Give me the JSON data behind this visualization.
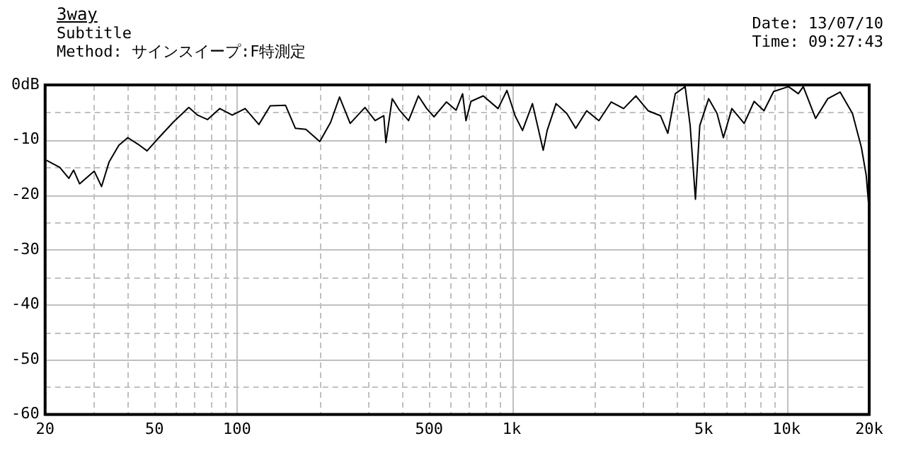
{
  "chart_data": {
    "type": "line",
    "title": "3way",
    "subtitle": "Subtitle",
    "annotations": [
      "Method:  サインスイープ:F特測定",
      "Date: 13/07/10",
      "Time: 09:27:43"
    ],
    "log": "x",
    "grid": true,
    "legend": false,
    "marker": "none",
    "line_style": "solid",
    "xlim": [
      20,
      20000
    ],
    "xticks": [
      20,
      {
        "value": 30,
        "label": null
      },
      {
        "value": 40,
        "label": null
      },
      50,
      {
        "value": 60,
        "label": null
      },
      {
        "value": 70,
        "label": null
      },
      {
        "value": 80,
        "label": null
      },
      {
        "value": 90,
        "label": null
      },
      100,
      {
        "value": 200,
        "label": null
      },
      {
        "value": 300,
        "label": null
      },
      {
        "value": 400,
        "label": null
      },
      500,
      {
        "value": 600,
        "label": null
      },
      {
        "value": 700,
        "label": null
      },
      {
        "value": 800,
        "label": null
      },
      {
        "value": 900,
        "label": null
      },
      {
        "value": 1000,
        "label": "1k"
      },
      {
        "value": 2000,
        "label": null
      },
      {
        "value": 3000,
        "label": null
      },
      {
        "value": 4000,
        "label": null
      },
      {
        "value": 5000,
        "label": "5k"
      },
      {
        "value": 6000,
        "label": null
      },
      {
        "value": 7000,
        "label": null
      },
      {
        "value": 8000,
        "label": null
      },
      {
        "value": 9000,
        "label": null
      },
      {
        "value": 10000,
        "label": "10k"
      },
      {
        "value": 20000,
        "label": "20k"
      }
    ],
    "ylim": [
      -60,
      0
    ],
    "yticks": [
      -60,
      {
        "value": -55,
        "label": null
      },
      -50,
      {
        "value": -45,
        "label": null
      },
      -40,
      {
        "value": -35,
        "label": null
      },
      -30,
      {
        "value": -25,
        "label": null
      },
      -20,
      {
        "value": -15,
        "label": null
      },
      -10,
      {
        "value": -5,
        "label": null
      },
      {
        "value": 0,
        "label": "0dB"
      }
    ],
    "series": [
      {
        "color": "#000000",
        "x": [
          20.2,
          22.6,
          24.4,
          25.4,
          26.7,
          30.2,
          32.1,
          34.2,
          37.1,
          40,
          43.6,
          47,
          51.9,
          58.5,
          66.7,
          71.8,
          78,
          86.5,
          96,
          107,
          120,
          132,
          150,
          163,
          178,
          200,
          219,
          236,
          258,
          292,
          318,
          342,
          348,
          367,
          390,
          421,
          457,
          490,
          521,
          578,
          627,
          662,
          681,
          710,
          787,
          891,
          960,
          1028,
          1094,
          1189,
          1301,
          1345,
          1449,
          1585,
          1709,
          1873,
          2075,
          2301,
          2553,
          2830,
          3134,
          3477,
          3698,
          3936,
          4276,
          4459,
          4661,
          4834,
          5208,
          5587,
          5892,
          6325,
          7015,
          7623,
          8280,
          8979,
          10165,
          11040,
          11510,
          12765,
          14140,
          15670,
          17380,
          18740,
          19500,
          19900,
          20000
        ],
        "values": [
          -13.7,
          -15,
          -17,
          -15.5,
          -18,
          -15.7,
          -18.5,
          -14,
          -11,
          -9.6,
          -10.8,
          -12,
          -9.6,
          -6.8,
          -4.1,
          -5.5,
          -6.3,
          -4.3,
          -5.5,
          -4.3,
          -7.2,
          -3.8,
          -3.7,
          -7.9,
          -8.1,
          -10.3,
          -6.8,
          -2.2,
          -7,
          -4.1,
          -6.5,
          -5.6,
          -10.5,
          -2.5,
          -4.6,
          -6.5,
          -2,
          -4.3,
          -5.8,
          -3.1,
          -4.6,
          -1.6,
          -6.5,
          -3,
          -2,
          -4.3,
          -1,
          -5.6,
          -8.3,
          -3.4,
          -11.9,
          -8.3,
          -3.4,
          -5.2,
          -7.9,
          -4.7,
          -6.5,
          -3.1,
          -4.3,
          -2,
          -4.7,
          -5.6,
          -8.8,
          -1.6,
          -0.3,
          -7.4,
          -20.8,
          -7.4,
          -2.5,
          -5.2,
          -9.6,
          -4.3,
          -7,
          -3,
          -4.7,
          -1.2,
          -0.3,
          -1.6,
          -0.3,
          -6.1,
          -2.5,
          -1.3,
          -5.2,
          -11.4,
          -16.4,
          -21.7,
          -36
        ]
      }
    ]
  }
}
